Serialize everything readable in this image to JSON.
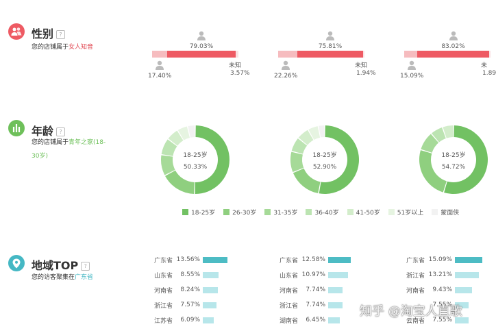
{
  "gender": {
    "title": "性别",
    "help": "?",
    "sub_prefix": "您的店铺属于",
    "sub_highlight": "女人知音",
    "cols": [
      {
        "female_pct": "79.03%",
        "male_pct": "17.40%",
        "unknown_label": "未知",
        "unknown_pct": "3.57%",
        "female": 0.7903,
        "male": 0.174,
        "unknown": 0.0357
      },
      {
        "female_pct": "75.81%",
        "male_pct": "22.26%",
        "unknown_label": "未知",
        "unknown_pct": "1.94%",
        "female": 0.7581,
        "male": 0.2226,
        "unknown": 0.0194
      },
      {
        "female_pct": "83.02%",
        "male_pct": "15.09%",
        "unknown_label": "未",
        "unknown_pct": "1.89",
        "female": 0.8302,
        "male": 0.1509,
        "unknown": 0.0189
      }
    ],
    "colors": {
      "female": "#ee5a63",
      "male": "#f6bcbf",
      "person": "#bbbbbb"
    }
  },
  "age": {
    "title": "年龄",
    "help": "?",
    "sub_prefix": "您的店铺属于",
    "sub_highlight1": "青年之家(18-",
    "sub_highlight2": "30岁)",
    "donuts": [
      {
        "label": "18-25岁",
        "pct": "50.33%",
        "values": [
          50.33,
          17,
          10,
          8,
          6,
          5,
          3.67
        ]
      },
      {
        "label": "18-25岁",
        "pct": "52.90%",
        "values": [
          52.9,
          16,
          10,
          7,
          6,
          5,
          3.1
        ]
      },
      {
        "label": "18-25岁",
        "pct": "54.72%",
        "values": [
          54.72,
          25,
          9,
          6,
          5.28
        ]
      }
    ],
    "legend": [
      {
        "label": "18-25岁",
        "color": "#72c163"
      },
      {
        "label": "26-30岁",
        "color": "#8fcf7f"
      },
      {
        "label": "31-35岁",
        "color": "#a6da98"
      },
      {
        "label": "36-40岁",
        "color": "#bce4b2"
      },
      {
        "label": "41-50岁",
        "color": "#d3edcb"
      },
      {
        "label": "51岁以上",
        "color": "#e6f4e1"
      },
      {
        "label": "蒙面侠",
        "color": "#f2f2f2"
      }
    ]
  },
  "region": {
    "title": "地域TOP",
    "help": "?",
    "sub_prefix": "您的访客聚集在",
    "sub_highlight": "广东省",
    "cols": [
      {
        "rows": [
          {
            "prov": "广东省",
            "pct": "13.56%",
            "v": 13.56
          },
          {
            "prov": "山东省",
            "pct": "8.55%",
            "v": 8.55
          },
          {
            "prov": "河南省",
            "pct": "8.24%",
            "v": 8.24
          },
          {
            "prov": "浙江省",
            "pct": "7.57%",
            "v": 7.57
          },
          {
            "prov": "江苏省",
            "pct": "6.09%",
            "v": 6.09
          }
        ]
      },
      {
        "rows": [
          {
            "prov": "广东省",
            "pct": "12.58%",
            "v": 12.58
          },
          {
            "prov": "山东省",
            "pct": "10.97%",
            "v": 10.97
          },
          {
            "prov": "河南省",
            "pct": "7.74%",
            "v": 7.74
          },
          {
            "prov": "浙江省",
            "pct": "7.74%",
            "v": 7.74
          },
          {
            "prov": "湖南省",
            "pct": "6.45%",
            "v": 6.45
          }
        ]
      },
      {
        "rows": [
          {
            "prov": "广东省",
            "pct": "15.09%",
            "v": 15.09
          },
          {
            "prov": "浙江省",
            "pct": "13.21%",
            "v": 13.21
          },
          {
            "prov": "河南省",
            "pct": "9.43%",
            "v": 9.43
          },
          {
            "prov": "",
            "pct": "7.55%",
            "v": 7.55
          },
          {
            "prov": "云南省",
            "pct": "7.55%",
            "v": 7.55
          }
        ]
      }
    ],
    "colors": {
      "top": "#4dbcc4",
      "rest": "#b7e6ea"
    }
  },
  "watermark": "知乎 @淘宝人直歌"
}
